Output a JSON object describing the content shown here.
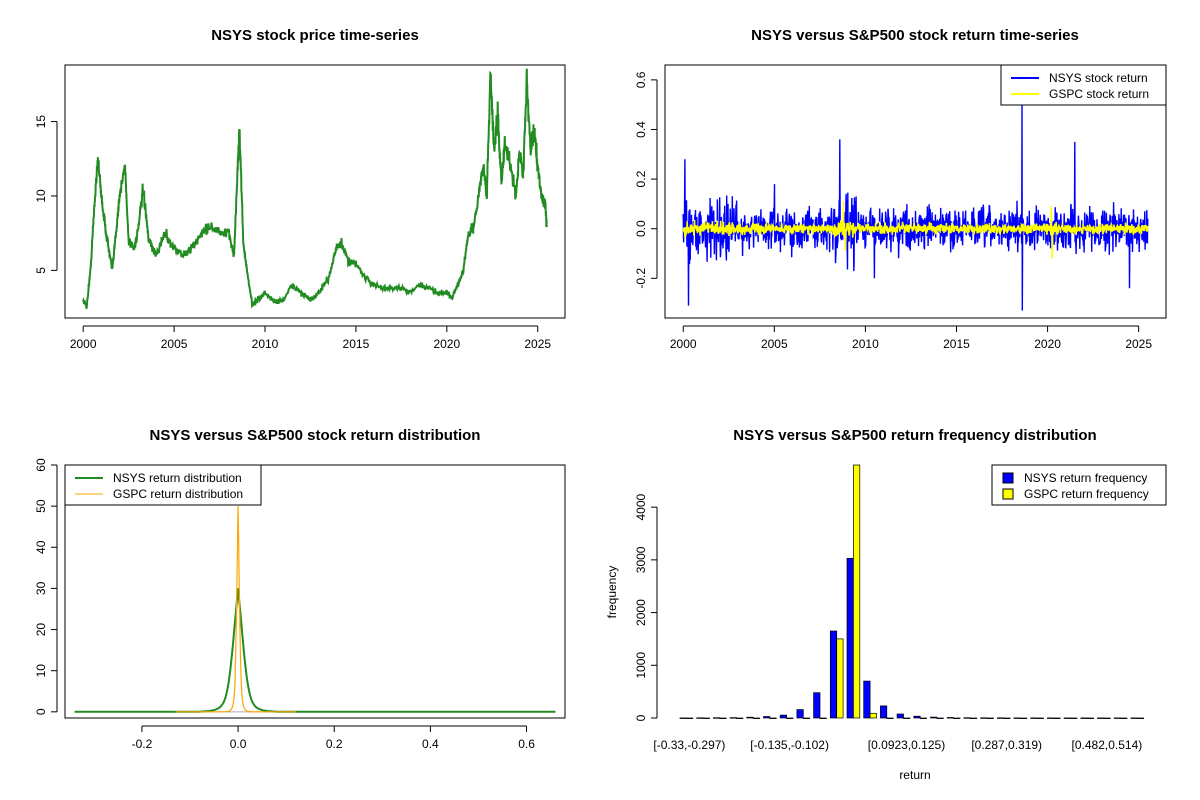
{
  "chart_data": [
    {
      "id": "price",
      "type": "line",
      "title": "NSYS stock price time-series",
      "xlabel": "",
      "ylabel": "",
      "xlim": [
        1999.0,
        2026.5
      ],
      "ylim": [
        1.8,
        18.8
      ],
      "xticks": [
        2000,
        2005,
        2010,
        2015,
        2020,
        2025
      ],
      "xtick_labels": [
        "2000",
        "2005",
        "2010",
        "2015",
        "2020",
        "2025"
      ],
      "yticks": [
        5,
        10,
        15
      ],
      "ytick_labels": [
        "5",
        "10",
        "15"
      ],
      "color": "#228B22",
      "series": [
        {
          "name": "NSYS price",
          "x": [
            2000.0,
            2000.2,
            2000.4,
            2000.6,
            2000.8,
            2001.0,
            2001.2,
            2001.4,
            2001.6,
            2001.8,
            2002.0,
            2002.3,
            2002.5,
            2002.8,
            2003.0,
            2003.3,
            2003.6,
            2004.0,
            2004.5,
            2005.0,
            2005.5,
            2006.0,
            2006.5,
            2007.0,
            2007.5,
            2008.0,
            2008.3,
            2008.5,
            2008.6,
            2008.8,
            2009.0,
            2009.3,
            2009.6,
            2010.0,
            2010.5,
            2011.0,
            2011.5,
            2012.0,
            2012.5,
            2013.0,
            2013.5,
            2013.9,
            2014.2,
            2014.6,
            2015.0,
            2015.5,
            2016.0,
            2016.5,
            2017.0,
            2017.5,
            2018.0,
            2018.5,
            2019.0,
            2019.5,
            2020.0,
            2020.3,
            2020.6,
            2020.9,
            2021.2,
            2021.5,
            2021.8,
            2022.0,
            2022.2,
            2022.4,
            2022.6,
            2022.8,
            2023.0,
            2023.2,
            2023.5,
            2023.8,
            2024.0,
            2024.2,
            2024.4,
            2024.6,
            2024.8,
            2025.0,
            2025.2,
            2025.4,
            2025.5
          ],
          "y": [
            3.0,
            2.6,
            5.0,
            9.0,
            12.6,
            10.0,
            8.0,
            6.5,
            5.0,
            7.5,
            10.0,
            12.0,
            7.0,
            6.5,
            7.5,
            10.5,
            7.0,
            6.0,
            7.5,
            6.5,
            6.0,
            6.5,
            7.5,
            8.0,
            7.5,
            7.5,
            6.0,
            12.0,
            14.5,
            7.0,
            5.0,
            2.7,
            3.0,
            3.5,
            2.9,
            3.0,
            4.0,
            3.5,
            3.0,
            3.5,
            4.5,
            6.5,
            6.8,
            5.5,
            5.5,
            4.5,
            4.0,
            3.8,
            3.8,
            3.8,
            3.5,
            4.0,
            3.8,
            3.5,
            3.5,
            3.2,
            4.0,
            5.0,
            7.5,
            8.0,
            10.5,
            12.0,
            10.0,
            18.3,
            13.0,
            15.5,
            11.0,
            13.5,
            12.0,
            10.0,
            13.0,
            11.5,
            17.9,
            13.0,
            14.5,
            12.0,
            10.0,
            9.5,
            8.0
          ]
        }
      ]
    },
    {
      "id": "returns",
      "type": "line",
      "title": "NSYS versus S&P500 stock return time-series",
      "xlabel": "",
      "ylabel": "",
      "xlim": [
        1999.0,
        2026.5
      ],
      "ylim": [
        -0.36,
        0.66
      ],
      "xticks": [
        2000,
        2005,
        2010,
        2015,
        2020,
        2025
      ],
      "xtick_labels": [
        "2000",
        "2005",
        "2010",
        "2015",
        "2020",
        "2025"
      ],
      "yticks": [
        -0.2,
        0.0,
        0.2,
        0.4,
        0.6
      ],
      "ytick_labels": [
        "-0.2",
        "0.0",
        "0.2",
        "0.4",
        "0.6"
      ],
      "legend": [
        "NSYS stock return",
        "GSPC stock return"
      ],
      "legend_position": "top-right",
      "series": [
        {
          "name": "NSYS stock return",
          "color": "#0000FF",
          "x_range": [
            2000.0,
            2025.5
          ],
          "amplitude": 0.08,
          "spikes": [
            [
              2000.1,
              0.28
            ],
            [
              2000.3,
              -0.31
            ],
            [
              2008.6,
              0.36
            ],
            [
              2018.6,
              0.5
            ],
            [
              2018.62,
              -0.33
            ],
            [
              2021.5,
              0.35
            ],
            [
              2024.5,
              -0.24
            ],
            [
              2005.0,
              0.18
            ],
            [
              2010.5,
              -0.2
            ]
          ]
        },
        {
          "name": "GSPC stock return",
          "color": "#FFFF00",
          "x_range": [
            2000.0,
            2025.5
          ],
          "amplitude": 0.02,
          "spikes": [
            [
              2008.8,
              0.11
            ],
            [
              2008.9,
              -0.09
            ],
            [
              2020.2,
              0.09
            ],
            [
              2020.25,
              -0.12
            ]
          ]
        }
      ]
    },
    {
      "id": "density",
      "type": "line",
      "title": "NSYS versus S&P500 stock return distribution",
      "xlabel": "",
      "ylabel": "",
      "xlim": [
        -0.36,
        0.68
      ],
      "ylim": [
        -1.5,
        60
      ],
      "xticks": [
        -0.2,
        0.0,
        0.2,
        0.4,
        0.6
      ],
      "xtick_labels": [
        "-0.2",
        "0.0",
        "0.2",
        "0.4",
        "0.6"
      ],
      "yticks": [
        0,
        10,
        20,
        30,
        40,
        50,
        60
      ],
      "ytick_labels": [
        "0",
        "10",
        "20",
        "30",
        "40",
        "50",
        "60"
      ],
      "legend": [
        "NSYS return distribution",
        "GSPC return distribution"
      ],
      "legend_position": "top-left",
      "series": [
        {
          "name": "NSYS return distribution",
          "color": "#228B22",
          "peak": 30,
          "scale": 0.022,
          "x_range": [
            -0.34,
            0.66
          ]
        },
        {
          "name": "GSPC return distribution",
          "color": "#FFA500",
          "peak": 50,
          "scale": 0.006,
          "x_range": [
            -0.13,
            0.12
          ]
        }
      ]
    },
    {
      "id": "histogram",
      "type": "bar",
      "title": "NSYS versus S&P500 return frequency distribution",
      "xlabel": "return",
      "ylabel": "frequency",
      "ylim": [
        0,
        4800
      ],
      "yticks": [
        0,
        1000,
        2000,
        3000,
        4000
      ],
      "ytick_labels": [
        "0",
        "1000",
        "2000",
        "3000",
        "4000"
      ],
      "category_labels_shown": [
        "[-0.33,-0.297)",
        "[-0.135,-0.102)",
        "[0.0923,0.125)",
        "[0.287,0.319)",
        "[0.482,0.514)"
      ],
      "category_label_indices": [
        0,
        6,
        13,
        19,
        25
      ],
      "legend": [
        "NSYS return frequency",
        "GSPC return frequency"
      ],
      "legend_position": "top-right",
      "categories_count": 28,
      "series": [
        {
          "name": "NSYS return frequency",
          "color": "#0000FF",
          "values": [
            2,
            3,
            5,
            8,
            15,
            28,
            55,
            160,
            480,
            1650,
            3030,
            700,
            230,
            75,
            35,
            18,
            10,
            6,
            4,
            3,
            2,
            2,
            1,
            1,
            2,
            1,
            1,
            1
          ]
        },
        {
          "name": "GSPC return frequency",
          "color": "#FFFF00",
          "values": [
            0,
            0,
            0,
            0,
            0,
            0,
            0,
            0,
            0,
            1500,
            4800,
            90,
            0,
            0,
            0,
            0,
            0,
            0,
            0,
            0,
            0,
            0,
            0,
            0,
            0,
            0,
            0,
            0
          ]
        }
      ]
    }
  ]
}
